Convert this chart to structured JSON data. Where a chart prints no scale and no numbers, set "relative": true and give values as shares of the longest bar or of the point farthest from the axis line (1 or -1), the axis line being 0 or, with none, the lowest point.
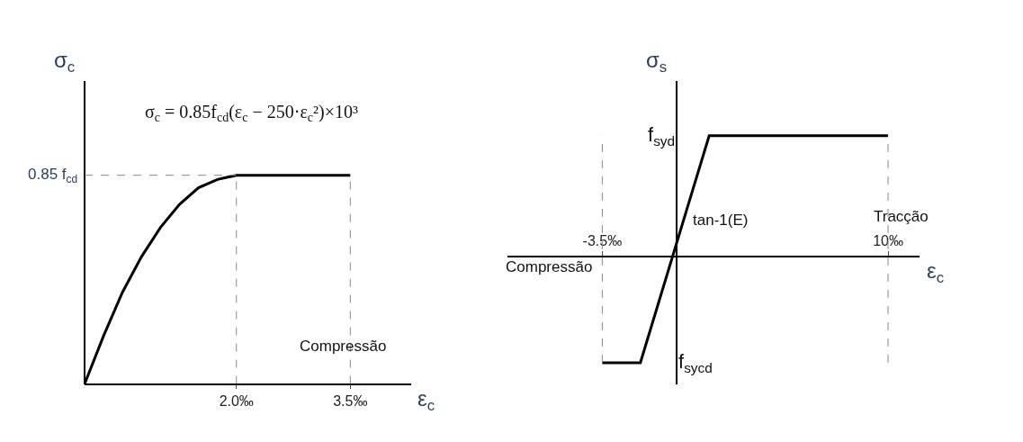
{
  "chart_data": [
    {
      "type": "line",
      "relative": true,
      "xlabel": "ε$_{c}$",
      "ylabel": "σ$_{c}$",
      "marker": "none",
      "line_style": "solid",
      "x": [
        0,
        0.25,
        0.5,
        0.75,
        1,
        1.25,
        1.5,
        1.75,
        2,
        3.5
      ],
      "series": [
        {
          "color": "#000000",
          "values": [
            0,
            0.23,
            0.44,
            0.61,
            0.75,
            0.86,
            0.94,
            0.98,
            1,
            1
          ]
        }
      ],
      "xlim": [
        0,
        4.3
      ],
      "xticks": [
        {
          "value": 2,
          "label": "2.0‰"
        },
        {
          "value": 3.5,
          "label": "3.5‰"
        }
      ],
      "ref_lines": [
        {
          "axis": "y",
          "value": 1,
          "label": "0.85 f$_{cd}$",
          "line_style": "dashed",
          "color": "#888888"
        },
        {
          "axis": "x",
          "value": 2,
          "line_style": "dashed",
          "color": "#888888"
        },
        {
          "axis": "x",
          "value": 3.5,
          "line_style": "dashed",
          "color": "#888888"
        }
      ],
      "annotations": [
        "σ$_{c}$ = 0.85f$_{cd}$(ε$_{c}$ − 250·ε$_{c}$²)×10³",
        "Compressão"
      ]
    },
    {
      "type": "line",
      "relative": true,
      "xlabel": "ε$_{c}$",
      "ylabel": "σ$_{s}$",
      "marker": "none",
      "line_style": "solid",
      "x": [
        -3.5,
        -1.7,
        1.55,
        10
      ],
      "series": [
        {
          "color": "#000000",
          "values": [
            -0.88,
            -0.88,
            1,
            1
          ]
        }
      ],
      "xlim": [
        -8,
        11.5
      ],
      "xticks": [
        {
          "value": -3.5,
          "label": "-3.5‰"
        },
        {
          "value": 10,
          "label": "10‰"
        }
      ],
      "ref_lines": [
        {
          "axis": "x",
          "value": -3.5,
          "line_style": "dashed",
          "color": "#888888"
        },
        {
          "axis": "x",
          "value": 10,
          "line_style": "dashed",
          "color": "#888888"
        }
      ],
      "annotations": [
        "f$_{syd}$",
        "f$_{sycd}$",
        "tan-1(E)",
        "Tracção",
        "Compressão"
      ]
    }
  ]
}
